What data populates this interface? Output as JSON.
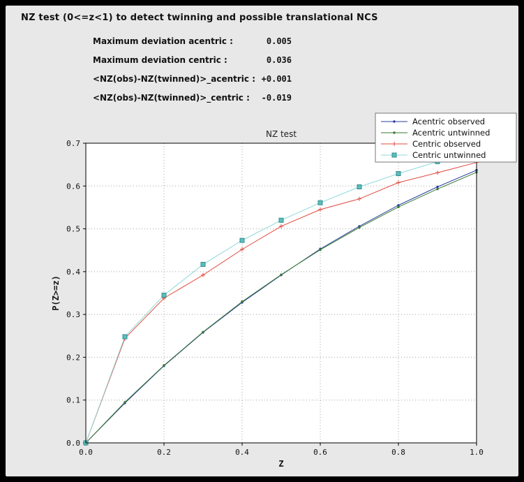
{
  "panel": {
    "background": "#e8e8e8",
    "title": "NZ test (0<=z<1) to detect twinning and possible translational NCS"
  },
  "stats": {
    "rows": [
      {
        "label": "Maximum deviation acentric :",
        "value": "0.005"
      },
      {
        "label": "Maximum deviation centric :",
        "value": "0.036"
      },
      {
        "label": "<NZ(obs)-NZ(twinned)>_acentric :",
        "value": "+0.001"
      },
      {
        "label": "<NZ(obs)-NZ(twinned)>_centric :",
        "value": "-0.019"
      }
    ]
  },
  "chart_data": {
    "type": "line",
    "title": "NZ test",
    "xlabel": "Z",
    "ylabel": "P(Z>=z)",
    "xlim": [
      0.0,
      1.0
    ],
    "ylim": [
      0.0,
      0.7
    ],
    "xticks": [
      0.0,
      0.2,
      0.4,
      0.6,
      0.8,
      1.0
    ],
    "yticks": [
      0.0,
      0.1,
      0.2,
      0.3,
      0.4,
      0.5,
      0.6,
      0.7
    ],
    "grid": true,
    "grid_style": "dotted",
    "legend_position": "top-right",
    "plot_bg": "#ffffff",
    "x": [
      0.0,
      0.1,
      0.2,
      0.3,
      0.4,
      0.5,
      0.6,
      0.7,
      0.8,
      0.9,
      1.0
    ],
    "series": [
      {
        "name": "Acentric observed",
        "color": "#2b3f9e",
        "marker": "dot",
        "values": [
          0.0,
          0.093,
          0.18,
          0.258,
          0.328,
          0.392,
          0.453,
          0.506,
          0.555,
          0.598,
          0.637
        ]
      },
      {
        "name": "Acentric untwinned",
        "color": "#3a7a33",
        "marker": "dot",
        "values": [
          0.0,
          0.095,
          0.181,
          0.259,
          0.33,
          0.393,
          0.451,
          0.503,
          0.551,
          0.593,
          0.632
        ]
      },
      {
        "name": "Centric observed",
        "color": "#e04a3f",
        "marker": "plus",
        "values": [
          0.0,
          0.244,
          0.338,
          0.392,
          0.452,
          0.506,
          0.545,
          0.57,
          0.608,
          0.631,
          0.655
        ]
      },
      {
        "name": "Centric untwinned",
        "color": "#8fd8d8",
        "marker": "square",
        "marker_fill": "#5fbdbd",
        "marker_edge": "#2e8f8f",
        "values": [
          0.0,
          0.248,
          0.345,
          0.417,
          0.473,
          0.52,
          0.561,
          0.598,
          0.629,
          0.657,
          0.683
        ]
      }
    ]
  }
}
